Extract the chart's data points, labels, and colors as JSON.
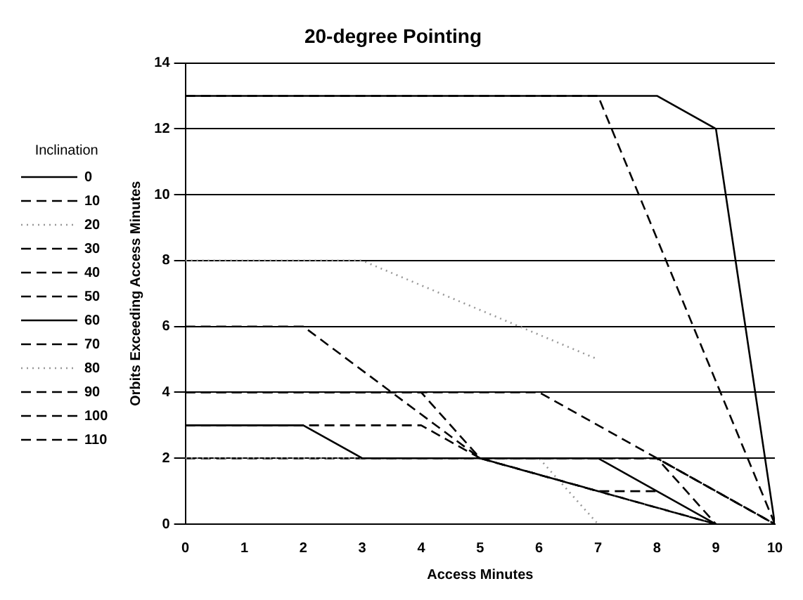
{
  "chart_data": {
    "type": "line",
    "title": "20-degree Pointing",
    "xlabel": "Access Minutes",
    "ylabel": "Orbits Exceeding Access Minutes",
    "legend_title": "Inclination",
    "legend": "left",
    "grid": "y",
    "marker": "none",
    "xlim": [
      0,
      10
    ],
    "xticks": [
      0,
      1,
      2,
      3,
      4,
      5,
      6,
      7,
      8,
      9,
      10
    ],
    "ylim": [
      0,
      14
    ],
    "yticks": [
      0,
      2,
      4,
      6,
      8,
      10,
      12,
      14
    ],
    "series": [
      {
        "name": "0",
        "color": "#000000",
        "line_style": "solid",
        "x": [
          0,
          8,
          9,
          10
        ],
        "values": [
          13,
          13,
          12,
          0
        ]
      },
      {
        "name": "10",
        "color": "#000000",
        "line_style": "dashed",
        "x": [
          0,
          7,
          10
        ],
        "values": [
          13,
          13,
          0
        ]
      },
      {
        "name": "20",
        "color": "#999999",
        "line_style": "dotted",
        "x": [
          0,
          3,
          7
        ],
        "values": [
          8,
          8,
          5
        ]
      },
      {
        "name": "30",
        "color": "#000000",
        "line_style": "dashed",
        "x": [
          0,
          2,
          5,
          8,
          10
        ],
        "values": [
          6,
          6,
          2,
          2,
          0
        ]
      },
      {
        "name": "40",
        "color": "#000000",
        "line_style": "dashed",
        "x": [
          0,
          4,
          5,
          9
        ],
        "values": [
          4,
          4,
          2,
          0
        ]
      },
      {
        "name": "50",
        "color": "#000000",
        "line_style": "dashed",
        "x": [
          0,
          4,
          5,
          9
        ],
        "values": [
          3,
          3,
          2,
          0
        ]
      },
      {
        "name": "60",
        "color": "#000000",
        "line_style": "solid",
        "x": [
          0,
          2,
          3,
          7,
          8,
          9
        ],
        "values": [
          3,
          3,
          2,
          2,
          1,
          0
        ]
      },
      {
        "name": "70",
        "color": "#000000",
        "line_style": "dashed",
        "x": [
          0,
          6,
          8,
          10
        ],
        "values": [
          4,
          4,
          2,
          0
        ]
      },
      {
        "name": "80",
        "color": "#999999",
        "line_style": "dotted",
        "x": [
          0,
          6,
          7
        ],
        "values": [
          2,
          2,
          0
        ]
      },
      {
        "name": "90",
        "color": "#000000",
        "line_style": "dashed",
        "x": [
          0,
          8,
          10
        ],
        "values": [
          2,
          2,
          0
        ]
      },
      {
        "name": "100",
        "color": "#000000",
        "line_style": "dashed",
        "x": [
          0,
          8,
          9
        ],
        "values": [
          2,
          2,
          0
        ]
      },
      {
        "name": "110",
        "color": "#000000",
        "line_style": "dashed",
        "x": [
          5,
          7,
          8
        ],
        "values": [
          2,
          1,
          1
        ]
      }
    ]
  }
}
